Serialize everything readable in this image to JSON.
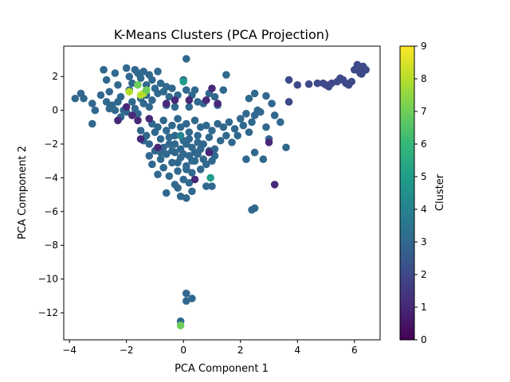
{
  "chart_data": {
    "type": "scatter",
    "title": "K-Means Clusters (PCA Projection)",
    "xlabel": "PCA Component 1",
    "ylabel": "PCA Component 2",
    "xlim": [
      -4.2,
      6.9
    ],
    "ylim": [
      -13.6,
      3.8
    ],
    "xticks": [
      -4,
      -2,
      0,
      2,
      4,
      6
    ],
    "yticks": [
      -12,
      -10,
      -8,
      -6,
      -4,
      -2,
      0,
      2
    ],
    "colorbar": {
      "label": "Cluster",
      "min": 0,
      "max": 9,
      "ticks": [
        0,
        1,
        2,
        3,
        4,
        5,
        6,
        7,
        8,
        9
      ],
      "colormap": "viridis"
    },
    "grid": false,
    "legend": "none",
    "points": [
      [
        6.1,
        2.7,
        2
      ],
      [
        6.2,
        2.5,
        2
      ],
      [
        6.3,
        2.3,
        2
      ],
      [
        6.4,
        2.4,
        2
      ],
      [
        6.2,
        2.2,
        2
      ],
      [
        6.3,
        2.6,
        2
      ],
      [
        6.0,
        2.4,
        2
      ],
      [
        6.35,
        2.45,
        2
      ],
      [
        6.15,
        2.35,
        2
      ],
      [
        6.25,
        2.15,
        2
      ],
      [
        5.6,
        1.8,
        2
      ],
      [
        5.7,
        1.6,
        2
      ],
      [
        5.8,
        1.5,
        2
      ],
      [
        5.5,
        1.9,
        2
      ],
      [
        5.9,
        1.7,
        2
      ],
      [
        5.4,
        1.7,
        2
      ],
      [
        5.2,
        1.6,
        2
      ],
      [
        5.0,
        1.5,
        2
      ],
      [
        4.9,
        1.6,
        2
      ],
      [
        5.1,
        1.4,
        2
      ],
      [
        4.7,
        1.6,
        2
      ],
      [
        4.4,
        1.55,
        2
      ],
      [
        4.0,
        1.5,
        2
      ],
      [
        3.7,
        1.8,
        2
      ],
      [
        3.7,
        0.5,
        2
      ],
      [
        -3.8,
        0.7,
        3
      ],
      [
        -3.6,
        1.0,
        3
      ],
      [
        -3.5,
        0.7,
        3
      ],
      [
        -3.2,
        0.4,
        3
      ],
      [
        -3.1,
        0.0,
        3
      ],
      [
        -3.2,
        -0.8,
        3
      ],
      [
        -2.9,
        0.9,
        3
      ],
      [
        -2.8,
        2.4,
        3
      ],
      [
        -2.7,
        1.8,
        3
      ],
      [
        -2.6,
        1.1,
        3
      ],
      [
        -2.5,
        0.3,
        3
      ],
      [
        -2.4,
        2.2,
        3
      ],
      [
        -2.3,
        1.5,
        3
      ],
      [
        -2.2,
        0.8,
        3
      ],
      [
        -2.1,
        0.0,
        3
      ],
      [
        -2.0,
        2.5,
        3
      ],
      [
        -1.9,
        2.0,
        3
      ],
      [
        -1.8,
        1.6,
        3
      ],
      [
        -1.7,
        2.4,
        3
      ],
      [
        -1.6,
        2.2,
        3
      ],
      [
        -1.5,
        1.9,
        3
      ],
      [
        -1.4,
        2.3,
        3
      ],
      [
        -1.3,
        1.5,
        3
      ],
      [
        -1.2,
        2.1,
        3
      ],
      [
        -1.1,
        1.8,
        3
      ],
      [
        -1.0,
        1.3,
        3
      ],
      [
        -0.9,
        1.0,
        3
      ],
      [
        -0.8,
        1.6,
        3
      ],
      [
        -0.7,
        1.1,
        3
      ],
      [
        -0.6,
        1.4,
        3
      ],
      [
        -1.9,
        1.2,
        3
      ],
      [
        -1.8,
        0.5,
        3
      ],
      [
        -1.7,
        0.1,
        3
      ],
      [
        -1.6,
        -0.2,
        3
      ],
      [
        -1.5,
        0.7,
        3
      ],
      [
        -1.4,
        0.4,
        3
      ],
      [
        -1.3,
        0.9,
        3
      ],
      [
        -1.2,
        0.2,
        3
      ],
      [
        -1.1,
        0.6,
        3
      ],
      [
        -2.2,
        -0.4,
        3
      ],
      [
        -2.0,
        -0.1,
        3
      ],
      [
        -2.3,
        0.5,
        3
      ],
      [
        -2.6,
        0.1,
        3
      ],
      [
        -2.7,
        0.5,
        3
      ],
      [
        -2.4,
        0.0,
        3
      ],
      [
        -0.9,
        2.3,
        3
      ],
      [
        -0.5,
        0.8,
        3
      ],
      [
        -0.4,
        1.3,
        3
      ],
      [
        -0.2,
        0.9,
        3
      ],
      [
        0.1,
        3.05,
        3
      ],
      [
        0.0,
        1.8,
        3
      ],
      [
        0.3,
        0.9,
        3
      ],
      [
        0.4,
        1.2,
        3
      ],
      [
        0.5,
        0.5,
        3
      ],
      [
        0.7,
        0.4,
        3
      ],
      [
        0.9,
        1.0,
        3
      ],
      [
        1.1,
        0.8,
        3
      ],
      [
        1.2,
        0.3,
        3
      ],
      [
        1.4,
        1.2,
        3
      ],
      [
        1.5,
        2.1,
        3
      ],
      [
        0.1,
        1.2,
        3
      ],
      [
        0.2,
        0.2,
        3
      ],
      [
        -0.3,
        0.2,
        3
      ],
      [
        -0.6,
        0.3,
        3
      ],
      [
        -1.5,
        -1.2,
        3
      ],
      [
        -1.4,
        -1.8,
        3
      ],
      [
        -1.3,
        -1.5,
        3
      ],
      [
        -1.2,
        -2.0,
        3
      ],
      [
        -1.1,
        -0.8,
        3
      ],
      [
        -1.0,
        -1.3,
        3
      ],
      [
        -0.9,
        -1.0,
        3
      ],
      [
        -0.8,
        -1.7,
        3
      ],
      [
        -0.7,
        -0.6,
        3
      ],
      [
        -0.6,
        -1.2,
        3
      ],
      [
        -0.5,
        -2.0,
        3
      ],
      [
        -0.4,
        -0.9,
        3
      ],
      [
        -0.3,
        -1.5,
        3
      ],
      [
        -0.2,
        -0.5,
        3
      ],
      [
        -0.1,
        -1.0,
        3
      ],
      [
        0.0,
        -1.8,
        3
      ],
      [
        0.1,
        -0.8,
        3
      ],
      [
        0.2,
        -1.3,
        3
      ],
      [
        0.3,
        -2.2,
        3
      ],
      [
        0.4,
        -0.6,
        3
      ],
      [
        0.5,
        -1.5,
        3
      ],
      [
        0.6,
        -1.0,
        3
      ],
      [
        0.7,
        -2.0,
        3
      ],
      [
        0.8,
        -0.9,
        3
      ],
      [
        0.9,
        -1.6,
        3
      ],
      [
        1.0,
        -1.2,
        3
      ],
      [
        1.1,
        -2.3,
        3
      ],
      [
        1.2,
        -0.8,
        3
      ],
      [
        1.3,
        -1.8,
        3
      ],
      [
        1.4,
        -1.0,
        3
      ],
      [
        1.5,
        -1.5,
        3
      ],
      [
        1.6,
        -0.7,
        3
      ],
      [
        1.7,
        -1.9,
        3
      ],
      [
        1.8,
        -1.1,
        3
      ],
      [
        1.9,
        -1.5,
        3
      ],
      [
        2.0,
        -0.5,
        3
      ],
      [
        2.1,
        -0.9,
        3
      ],
      [
        2.2,
        -0.2,
        3
      ],
      [
        2.3,
        -1.3,
        3
      ],
      [
        2.4,
        -0.7,
        3
      ],
      [
        2.5,
        -0.3,
        3
      ],
      [
        2.7,
        -0.1,
        3
      ],
      [
        2.3,
        0.7,
        3
      ],
      [
        2.5,
        1.0,
        3
      ],
      [
        2.6,
        0.0,
        3
      ],
      [
        -1.2,
        -2.7,
        3
      ],
      [
        -1.1,
        -3.2,
        3
      ],
      [
        -1.0,
        -2.4,
        3
      ],
      [
        -0.9,
        -3.8,
        3
      ],
      [
        -0.8,
        -2.9,
        3
      ],
      [
        -0.7,
        -3.4,
        3
      ],
      [
        -0.6,
        -2.6,
        3
      ],
      [
        -0.5,
        -3.9,
        3
      ],
      [
        -0.4,
        -3.1,
        3
      ],
      [
        -0.3,
        -2.5,
        3
      ],
      [
        -0.2,
        -3.6,
        3
      ],
      [
        -0.1,
        -2.8,
        3
      ],
      [
        0.0,
        -4.1,
        3
      ],
      [
        0.1,
        -3.3,
        3
      ],
      [
        0.2,
        -2.7,
        3
      ],
      [
        0.3,
        -3.7,
        3
      ],
      [
        0.4,
        -3.0,
        3
      ],
      [
        0.5,
        -2.6,
        3
      ],
      [
        0.6,
        -3.5,
        3
      ],
      [
        0.7,
        -2.9,
        3
      ],
      [
        0.8,
        -3.2,
        3
      ],
      [
        0.9,
        -2.4,
        3
      ],
      [
        1.0,
        -3.0,
        3
      ],
      [
        1.1,
        -2.7,
        3
      ],
      [
        -0.6,
        -4.9,
        3
      ],
      [
        -0.3,
        -4.4,
        3
      ],
      [
        -0.2,
        -4.6,
        3
      ],
      [
        -0.1,
        -5.1,
        3
      ],
      [
        0.1,
        -5.2,
        3
      ],
      [
        0.2,
        -4.3,
        3
      ],
      [
        0.3,
        -4.8,
        3
      ],
      [
        0.8,
        -4.5,
        3
      ],
      [
        1.0,
        -4.5,
        3
      ],
      [
        2.2,
        -2.9,
        3
      ],
      [
        2.5,
        -2.5,
        3
      ],
      [
        2.8,
        -2.9,
        3
      ],
      [
        2.9,
        -1.0,
        3
      ],
      [
        3.0,
        -1.7,
        3
      ],
      [
        3.2,
        -0.3,
        3
      ],
      [
        3.4,
        -0.7,
        3
      ],
      [
        3.6,
        -2.2,
        3
      ],
      [
        2.9,
        0.85,
        3
      ],
      [
        3.1,
        0.4,
        3
      ],
      [
        2.5,
        -5.8,
        3
      ],
      [
        2.4,
        -5.9,
        3
      ],
      [
        -0.3,
        -2.0,
        3
      ],
      [
        -0.1,
        -2.3,
        3
      ],
      [
        0.1,
        -2.0,
        3
      ],
      [
        0.2,
        -1.7,
        3
      ],
      [
        -0.4,
        -2.4,
        3
      ],
      [
        0.4,
        -2.5,
        3
      ],
      [
        0.6,
        -2.3,
        3
      ],
      [
        -0.5,
        -1.6,
        3
      ],
      [
        -0.2,
        -3.1,
        3
      ],
      [
        0.0,
        -2.6,
        3
      ],
      [
        0.3,
        -3.0,
        3
      ],
      [
        -0.7,
        -2.2,
        3
      ],
      [
        0.5,
        -1.9,
        3
      ],
      [
        -0.8,
        -2.5,
        3
      ],
      [
        0.1,
        -3.5,
        3
      ],
      [
        0.1,
        -10.85,
        3
      ],
      [
        0.1,
        -11.3,
        3
      ],
      [
        0.3,
        -11.15,
        3
      ],
      [
        -0.1,
        -12.5,
        3
      ],
      [
        -2.0,
        0.2,
        1
      ],
      [
        -1.8,
        -0.3,
        1
      ],
      [
        -1.6,
        -0.6,
        1
      ],
      [
        -1.5,
        -1.7,
        1
      ],
      [
        -1.2,
        -0.5,
        1
      ],
      [
        -0.9,
        -2.2,
        1
      ],
      [
        -0.6,
        0.4,
        1
      ],
      [
        -0.3,
        0.6,
        1
      ],
      [
        0.2,
        0.6,
        1
      ],
      [
        0.8,
        0.6,
        1
      ],
      [
        1.0,
        1.3,
        1
      ],
      [
        1.2,
        0.4,
        1
      ],
      [
        0.9,
        -2.5,
        1
      ],
      [
        0.4,
        -4.1,
        1
      ],
      [
        3.0,
        -1.9,
        1
      ],
      [
        3.2,
        -4.4,
        1
      ],
      [
        -2.3,
        -0.6,
        1
      ],
      [
        -1.9,
        1.1,
        8
      ],
      [
        -1.5,
        0.9,
        8
      ],
      [
        -1.4,
        1.0,
        8
      ],
      [
        -1.6,
        1.5,
        7
      ],
      [
        -1.3,
        1.2,
        7
      ],
      [
        -0.1,
        -12.75,
        7
      ],
      [
        0.0,
        1.7,
        5
      ],
      [
        -0.1,
        -1.5,
        4
      ],
      [
        0.95,
        -4.0,
        5
      ]
    ]
  }
}
